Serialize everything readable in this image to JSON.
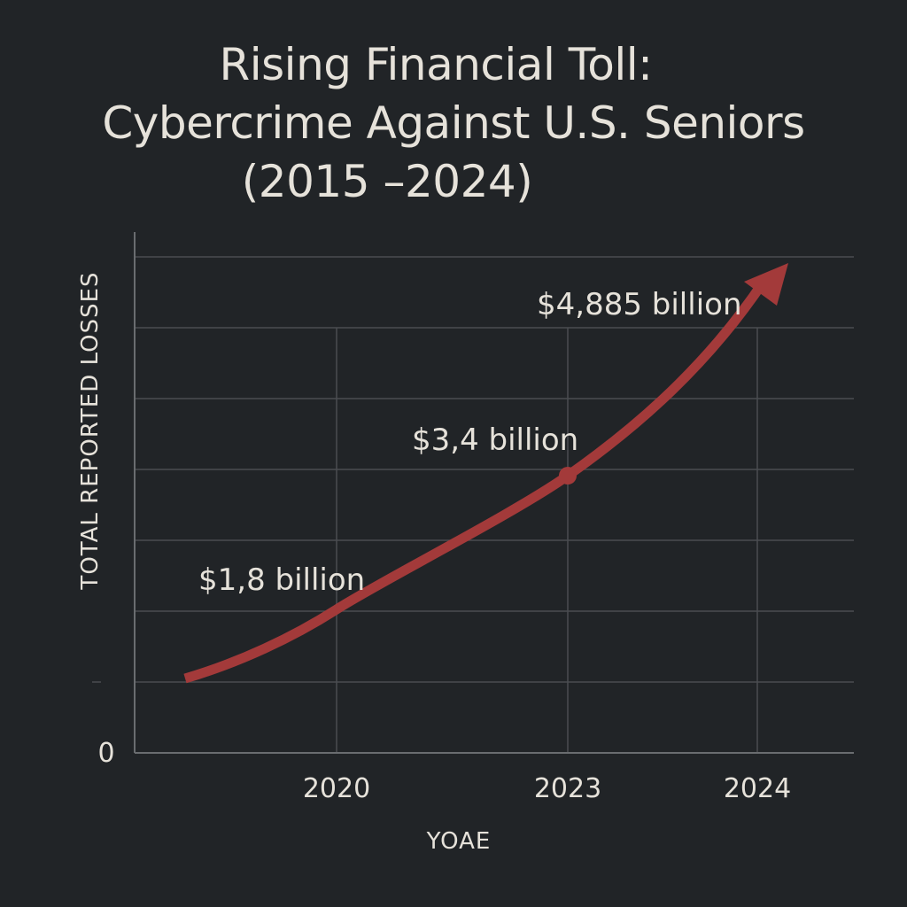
{
  "chart_data": {
    "type": "line",
    "title_lines": [
      "Rising Financial Toll:",
      "Cybercrime Against U.S. Seniors",
      "(2015 –2024)"
    ],
    "xlabel": "YOAE",
    "ylabel": "TOTAL REPORTED LOSSES",
    "y_tick_labels": [
      "0"
    ],
    "x_tick_labels": [
      "2020",
      "2023",
      "2024"
    ],
    "grid": true,
    "series": [
      {
        "color": "#a33a3a",
        "points": [
          {
            "x": 2018,
            "y": 1.0
          },
          {
            "x": 2020,
            "y": 1.8
          },
          {
            "x": 2023,
            "y": 3.4
          },
          {
            "x": 2024,
            "y": 4.885
          }
        ],
        "annotations": [
          {
            "x": 2020,
            "y": 1.8,
            "label": "$1,8 billion"
          },
          {
            "x": 2023,
            "y": 3.4,
            "label": "$3,4 billion",
            "marker": true
          },
          {
            "x": 2024,
            "y": 4.885,
            "label": "$4,885 billion"
          }
        ]
      }
    ]
  }
}
